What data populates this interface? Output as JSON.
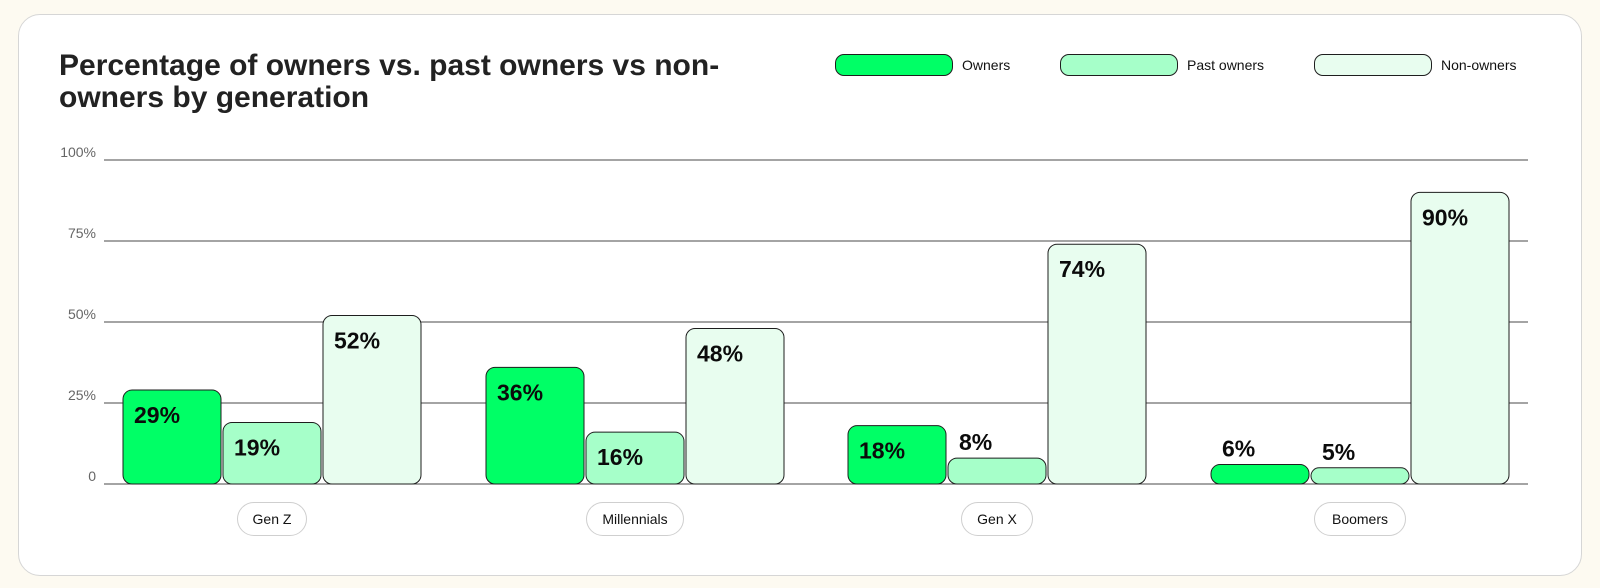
{
  "colors": {
    "owners": "#00ff66",
    "past_owners": "#a6ffc9",
    "non_owners": "#e8fdef",
    "gridline": "#4a4a4a",
    "border": "#1e1e1e",
    "tick_text": "#666666"
  },
  "chart_data": {
    "type": "bar",
    "title": "Percentage of owners vs. past owners vs non-owners by generation",
    "categories": [
      "Gen Z",
      "Millennials",
      "Gen X",
      "Boomers"
    ],
    "series": [
      {
        "name": "Owners",
        "values": [
          29,
          36,
          18,
          6
        ],
        "data_labels": [
          "29%",
          "36%",
          "18%",
          "6%"
        ]
      },
      {
        "name": "Past owners",
        "values": [
          19,
          16,
          8,
          5
        ],
        "data_labels": [
          "19%",
          "16%",
          "8%",
          "5%"
        ]
      },
      {
        "name": "Non-owners",
        "values": [
          52,
          48,
          74,
          90
        ],
        "data_labels": [
          "52%",
          "48%",
          "74%",
          "90%"
        ]
      }
    ],
    "ylim": [
      0,
      100
    ],
    "y_ticks": [
      0,
      25,
      50,
      75,
      100
    ],
    "y_tick_labels": [
      "0",
      "25%",
      "50%",
      "75%",
      "100%"
    ],
    "grid": true,
    "legend_position": "top-right"
  }
}
